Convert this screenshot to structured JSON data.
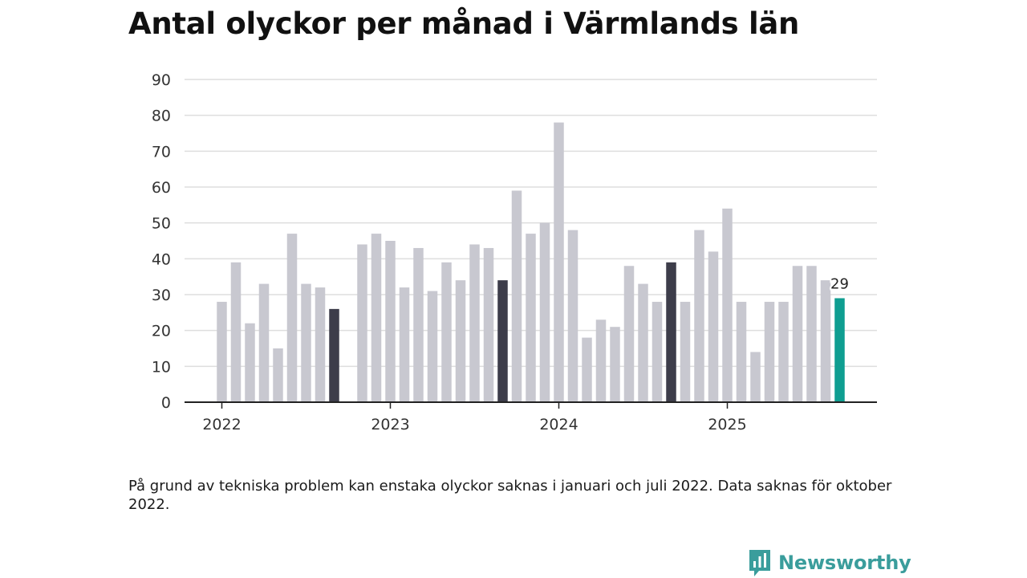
{
  "chart_data": {
    "type": "bar",
    "title": "Antal olyckor per månad i Värmlands län",
    "xlabel": "",
    "ylabel": "",
    "ylim": [
      0,
      90
    ],
    "yticks": [
      0,
      10,
      20,
      30,
      40,
      50,
      60,
      70,
      80,
      90
    ],
    "grid": true,
    "x_tick_labels": [
      "2022",
      "2023",
      "2024",
      "2025"
    ],
    "categories": [
      "2022-01",
      "2022-02",
      "2022-03",
      "2022-04",
      "2022-05",
      "2022-06",
      "2022-07",
      "2022-08",
      "2022-09",
      "2022-10",
      "2022-11",
      "2022-12",
      "2023-01",
      "2023-02",
      "2023-03",
      "2023-04",
      "2023-05",
      "2023-06",
      "2023-07",
      "2023-08",
      "2023-09",
      "2023-10",
      "2023-11",
      "2023-12",
      "2024-01",
      "2024-02",
      "2024-03",
      "2024-04",
      "2024-05",
      "2024-06",
      "2024-07",
      "2024-08",
      "2024-09",
      "2024-10",
      "2024-11",
      "2024-12",
      "2025-01",
      "2025-02",
      "2025-03",
      "2025-04",
      "2025-05",
      "2025-06",
      "2025-07",
      "2025-08",
      "2025-09"
    ],
    "values": [
      28,
      39,
      22,
      33,
      15,
      47,
      33,
      32,
      26,
      null,
      44,
      47,
      45,
      32,
      43,
      31,
      39,
      34,
      44,
      43,
      34,
      59,
      47,
      50,
      78,
      48,
      18,
      23,
      21,
      38,
      33,
      28,
      39,
      28,
      48,
      42,
      54,
      28,
      14,
      28,
      28,
      38,
      38,
      34,
      29
    ],
    "highlight_dark": [
      "2022-09",
      "2023-09",
      "2024-09"
    ],
    "highlight_current": "2025-09",
    "data_labels": [
      {
        "category": "2025-09",
        "text": "29"
      }
    ],
    "colors": {
      "default": "#c8c8d0",
      "dark": "#3d3d4a",
      "current": "#0f9e91",
      "grid": "#dedede",
      "axis": "#222222"
    }
  },
  "footnote": "På grund av tekniska problem kan enstaka olyckor saknas i januari och juli 2022. Data saknas för oktober 2022.",
  "brand": {
    "name": "Newsworthy",
    "icon": "newsworthy-logo-icon",
    "color": "#3a9d9c"
  }
}
